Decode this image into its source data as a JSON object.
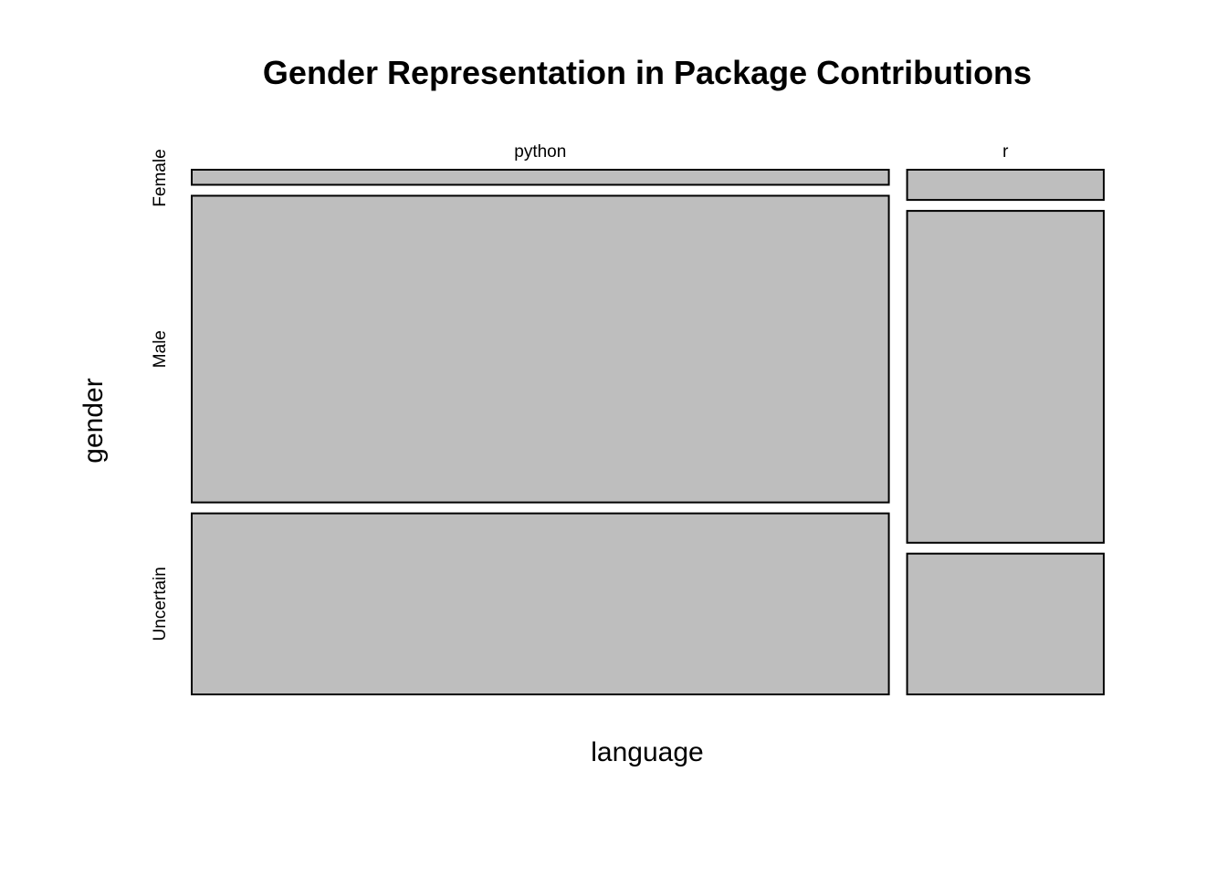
{
  "chart_data": {
    "type": "mosaic",
    "title": "Gender Representation in Package Contributions",
    "xlabel": "language",
    "ylabel": "gender",
    "x_categories": [
      "python",
      "r"
    ],
    "y_categories": [
      "Female",
      "Male",
      "Uncertain"
    ],
    "x_proportions": [
      0.78,
      0.22
    ],
    "cell_proportions": {
      "python": [
        0.03,
        0.61,
        0.36
      ],
      "r": [
        0.06,
        0.66,
        0.28
      ]
    },
    "tile_color": "#bebebe",
    "grid": false,
    "legend": "none"
  }
}
